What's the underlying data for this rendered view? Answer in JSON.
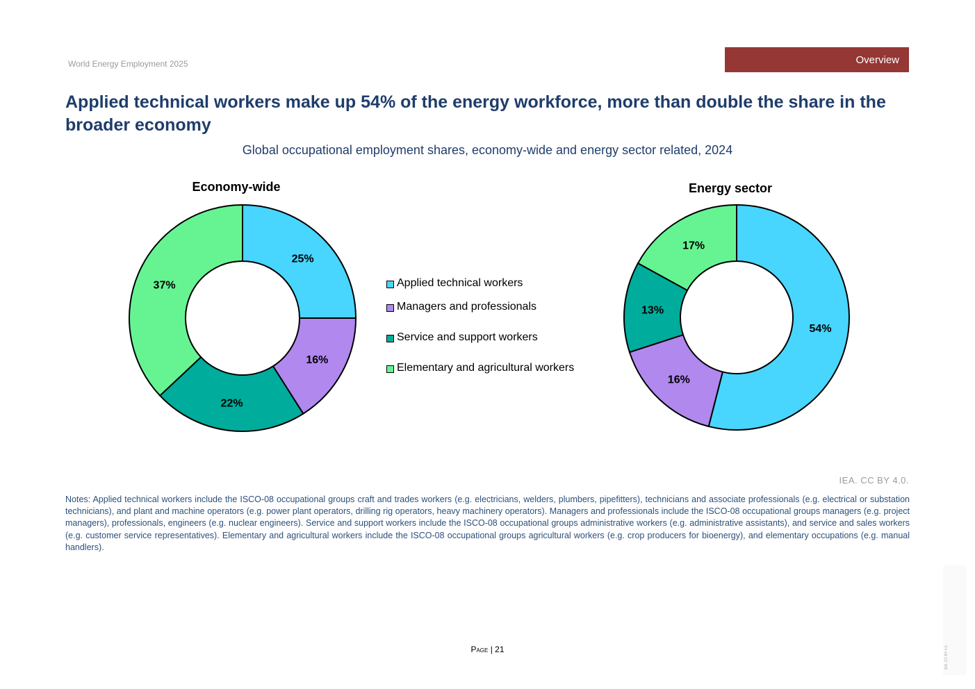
{
  "header": {
    "report_title": "World Energy Employment 2025",
    "section_tab": "Overview"
  },
  "title": "Applied technical workers make up 54% of the energy workforce, more than double the share in the broader economy",
  "subtitle": "Global occupational employment shares, economy-wide and energy sector related, 2024",
  "colors": {
    "Applied technical workers": "#48d5fe",
    "Managers and professionals": "#b088ee",
    "Service and support workers": "#00ac9c",
    "Elementary and agricultural workers": "#66f493",
    "tab": "#953735",
    "title": "#1f3d6b"
  },
  "chart_data": [
    {
      "type": "pie",
      "style": "donut",
      "title": "Economy-wide",
      "categories": [
        "Applied technical workers",
        "Managers and professionals",
        "Service and support workers",
        "Elementary and agricultural workers"
      ],
      "values": [
        25,
        16,
        22,
        37
      ],
      "labels": [
        "25%",
        "16%",
        "22%",
        "37%"
      ]
    },
    {
      "type": "pie",
      "style": "donut",
      "title": "Energy sector",
      "categories": [
        "Applied technical workers",
        "Managers and professionals",
        "Service and support workers",
        "Elementary and agricultural workers"
      ],
      "values": [
        54,
        16,
        13,
        17
      ],
      "labels": [
        "54%",
        "16%",
        "13%",
        "17%"
      ]
    }
  ],
  "legend": {
    "items": [
      {
        "label": "Applied technical workers",
        "color": "#48d5fe"
      },
      {
        "label": "Managers and professionals",
        "color": "#b088ee"
      },
      {
        "label": "Service and support workers",
        "color": "#00ac9c"
      },
      {
        "label": "Elementary and agricultural workers",
        "color": "#66f493"
      }
    ]
  },
  "source": "IEA. CC BY 4.0.",
  "notes": "Notes: Applied technical workers include the ISCO-08 occupational groups craft and trades workers (e.g. electricians, welders, plumbers, pipefitters), technicians and associate professionals (e.g. electrical or substation technicians), and plant and machine operators (e.g. power plant operators, drilling rig operators, heavy machinery operators). Managers and professionals include the ISCO-08 occupational groups managers (e.g. project managers), professionals, engineers (e.g. nuclear engineers). Service and support workers include the ISCO-08 occupational groups administrative workers (e.g. administrative assistants), and service and sales workers (e.g. customer service representatives). Elementary and agricultural workers include the ISCO-08 occupational groups agricultural workers (e.g. crop producers for bioenergy), and elementary occupations (e.g. manual handlers).",
  "footer": {
    "page_label": "Page",
    "separator": "|",
    "page_number": "21",
    "side_mark": "IEA. CC BY 4.0."
  }
}
